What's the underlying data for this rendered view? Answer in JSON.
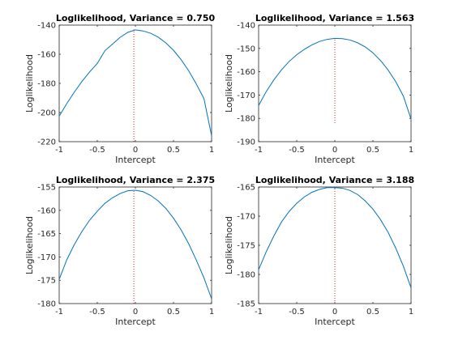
{
  "chart_data": [
    {
      "type": "line",
      "title": "Loglikelihood, Variance = 0.750",
      "xlabel": "Intercept",
      "ylabel": "Loglikelihood",
      "xlim": [
        -1,
        1
      ],
      "ylim": [
        -220,
        -140
      ],
      "xticks": [
        "-1",
        "-0.5",
        "0",
        "0.5",
        "1"
      ],
      "yticks": [
        "-220",
        "-200",
        "-180",
        "-160",
        "-140"
      ],
      "grid": false,
      "series": [
        {
          "color": "#0072bd",
          "x": [
            -1,
            -0.9,
            -0.8,
            -0.7,
            -0.6,
            -0.5,
            -0.4,
            -0.3,
            -0.2,
            -0.1,
            0,
            0.1,
            0.2,
            0.3,
            0.4,
            0.5,
            0.6,
            0.7,
            0.8,
            0.9,
            1
          ],
          "y": [
            -202.5,
            -193.8,
            -185.9,
            -178.6,
            -172.1,
            -166.3,
            -157.6,
            -153.0,
            -148.4,
            -145.0,
            -143.3,
            -144.0,
            -145.6,
            -148.3,
            -152.2,
            -157.3,
            -163.7,
            -171.4,
            -180.5,
            -190.5,
            -216.0
          ]
        }
      ],
      "annotations": [
        {
          "type": "vline",
          "x": -0.02,
          "y_from": -220,
          "y_to": -143,
          "style": "dotted",
          "color": "#d62728"
        }
      ]
    },
    {
      "type": "line",
      "title": "Loglikelihood, Variance = 1.563",
      "xlabel": "Intercept",
      "ylabel": "Loglikelihood",
      "xlim": [
        -1,
        1
      ],
      "ylim": [
        -190,
        -140
      ],
      "xticks": [
        "-1",
        "-0.5",
        "0",
        "0.5",
        "1"
      ],
      "yticks": [
        "-190",
        "-180",
        "-170",
        "-160",
        "-150",
        "-140"
      ],
      "grid": false,
      "series": [
        {
          "color": "#0072bd",
          "x": [
            -1,
            -0.9,
            -0.8,
            -0.7,
            -0.6,
            -0.5,
            -0.4,
            -0.3,
            -0.2,
            -0.1,
            0,
            0.1,
            0.2,
            0.3,
            0.4,
            0.5,
            0.6,
            0.7,
            0.8,
            0.9,
            1
          ],
          "y": [
            -174.5,
            -168.5,
            -163.5,
            -159.2,
            -155.6,
            -152.7,
            -150.4,
            -148.5,
            -147.0,
            -146.1,
            -145.7,
            -145.8,
            -146.4,
            -147.6,
            -149.4,
            -151.9,
            -155.2,
            -159.3,
            -164.3,
            -170.5,
            -180.3
          ]
        }
      ],
      "annotations": [
        {
          "type": "vline",
          "x": 0.0,
          "y_from": -182,
          "y_to": -145.7,
          "style": "dotted",
          "color": "#d62728"
        }
      ]
    },
    {
      "type": "line",
      "title": "Loglikelihood, Variance = 2.375",
      "xlabel": "Intercept",
      "ylabel": "Loglikelihood",
      "xlim": [
        -1,
        1
      ],
      "ylim": [
        -180,
        -155
      ],
      "xticks": [
        "-1",
        "-0.5",
        "0",
        "0.5",
        "1"
      ],
      "yticks": [
        "-180",
        "-175",
        "-170",
        "-165",
        "-160",
        "-155"
      ],
      "grid": false,
      "series": [
        {
          "color": "#0072bd",
          "x": [
            -1,
            -0.9,
            -0.8,
            -0.7,
            -0.6,
            -0.5,
            -0.4,
            -0.3,
            -0.2,
            -0.1,
            0,
            0.1,
            0.2,
            0.3,
            0.4,
            0.5,
            0.6,
            0.7,
            0.8,
            0.9,
            1
          ],
          "y": [
            -174.8,
            -170.6,
            -167.3,
            -164.5,
            -162.1,
            -160.2,
            -158.5,
            -157.3,
            -156.4,
            -155.8,
            -155.7,
            -156.0,
            -156.8,
            -158.0,
            -159.6,
            -161.7,
            -164.2,
            -167.2,
            -170.7,
            -174.5,
            -179.0
          ]
        }
      ],
      "annotations": [
        {
          "type": "vline",
          "x": -0.02,
          "y_from": -180,
          "y_to": -155.7,
          "style": "dotted",
          "color": "#d62728"
        }
      ]
    },
    {
      "type": "line",
      "title": "Loglikelihood, Variance = 3.188",
      "xlabel": "Intercept",
      "ylabel": "Loglikelihood",
      "xlim": [
        -1,
        1
      ],
      "ylim": [
        -185,
        -165
      ],
      "xticks": [
        "-1",
        "-0.5",
        "0",
        "0.5",
        "1"
      ],
      "yticks": [
        "-185",
        "-180",
        "-175",
        "-170",
        "-165"
      ],
      "grid": false,
      "series": [
        {
          "color": "#0072bd",
          "x": [
            -1,
            -0.9,
            -0.8,
            -0.7,
            -0.6,
            -0.5,
            -0.4,
            -0.3,
            -0.2,
            -0.1,
            0,
            0.1,
            0.2,
            0.3,
            0.4,
            0.5,
            0.6,
            0.7,
            0.8,
            0.9,
            1
          ],
          "y": [
            -179.2,
            -176.1,
            -173.4,
            -171.0,
            -169.2,
            -167.8,
            -166.7,
            -165.9,
            -165.4,
            -165.1,
            -165.1,
            -165.2,
            -165.6,
            -166.3,
            -167.4,
            -168.8,
            -170.6,
            -172.8,
            -175.5,
            -178.6,
            -182.3
          ]
        }
      ],
      "annotations": [
        {
          "type": "vline",
          "x": 0.0,
          "y_from": -185,
          "y_to": -165.1,
          "style": "dotted",
          "color": "#d62728"
        }
      ]
    }
  ]
}
